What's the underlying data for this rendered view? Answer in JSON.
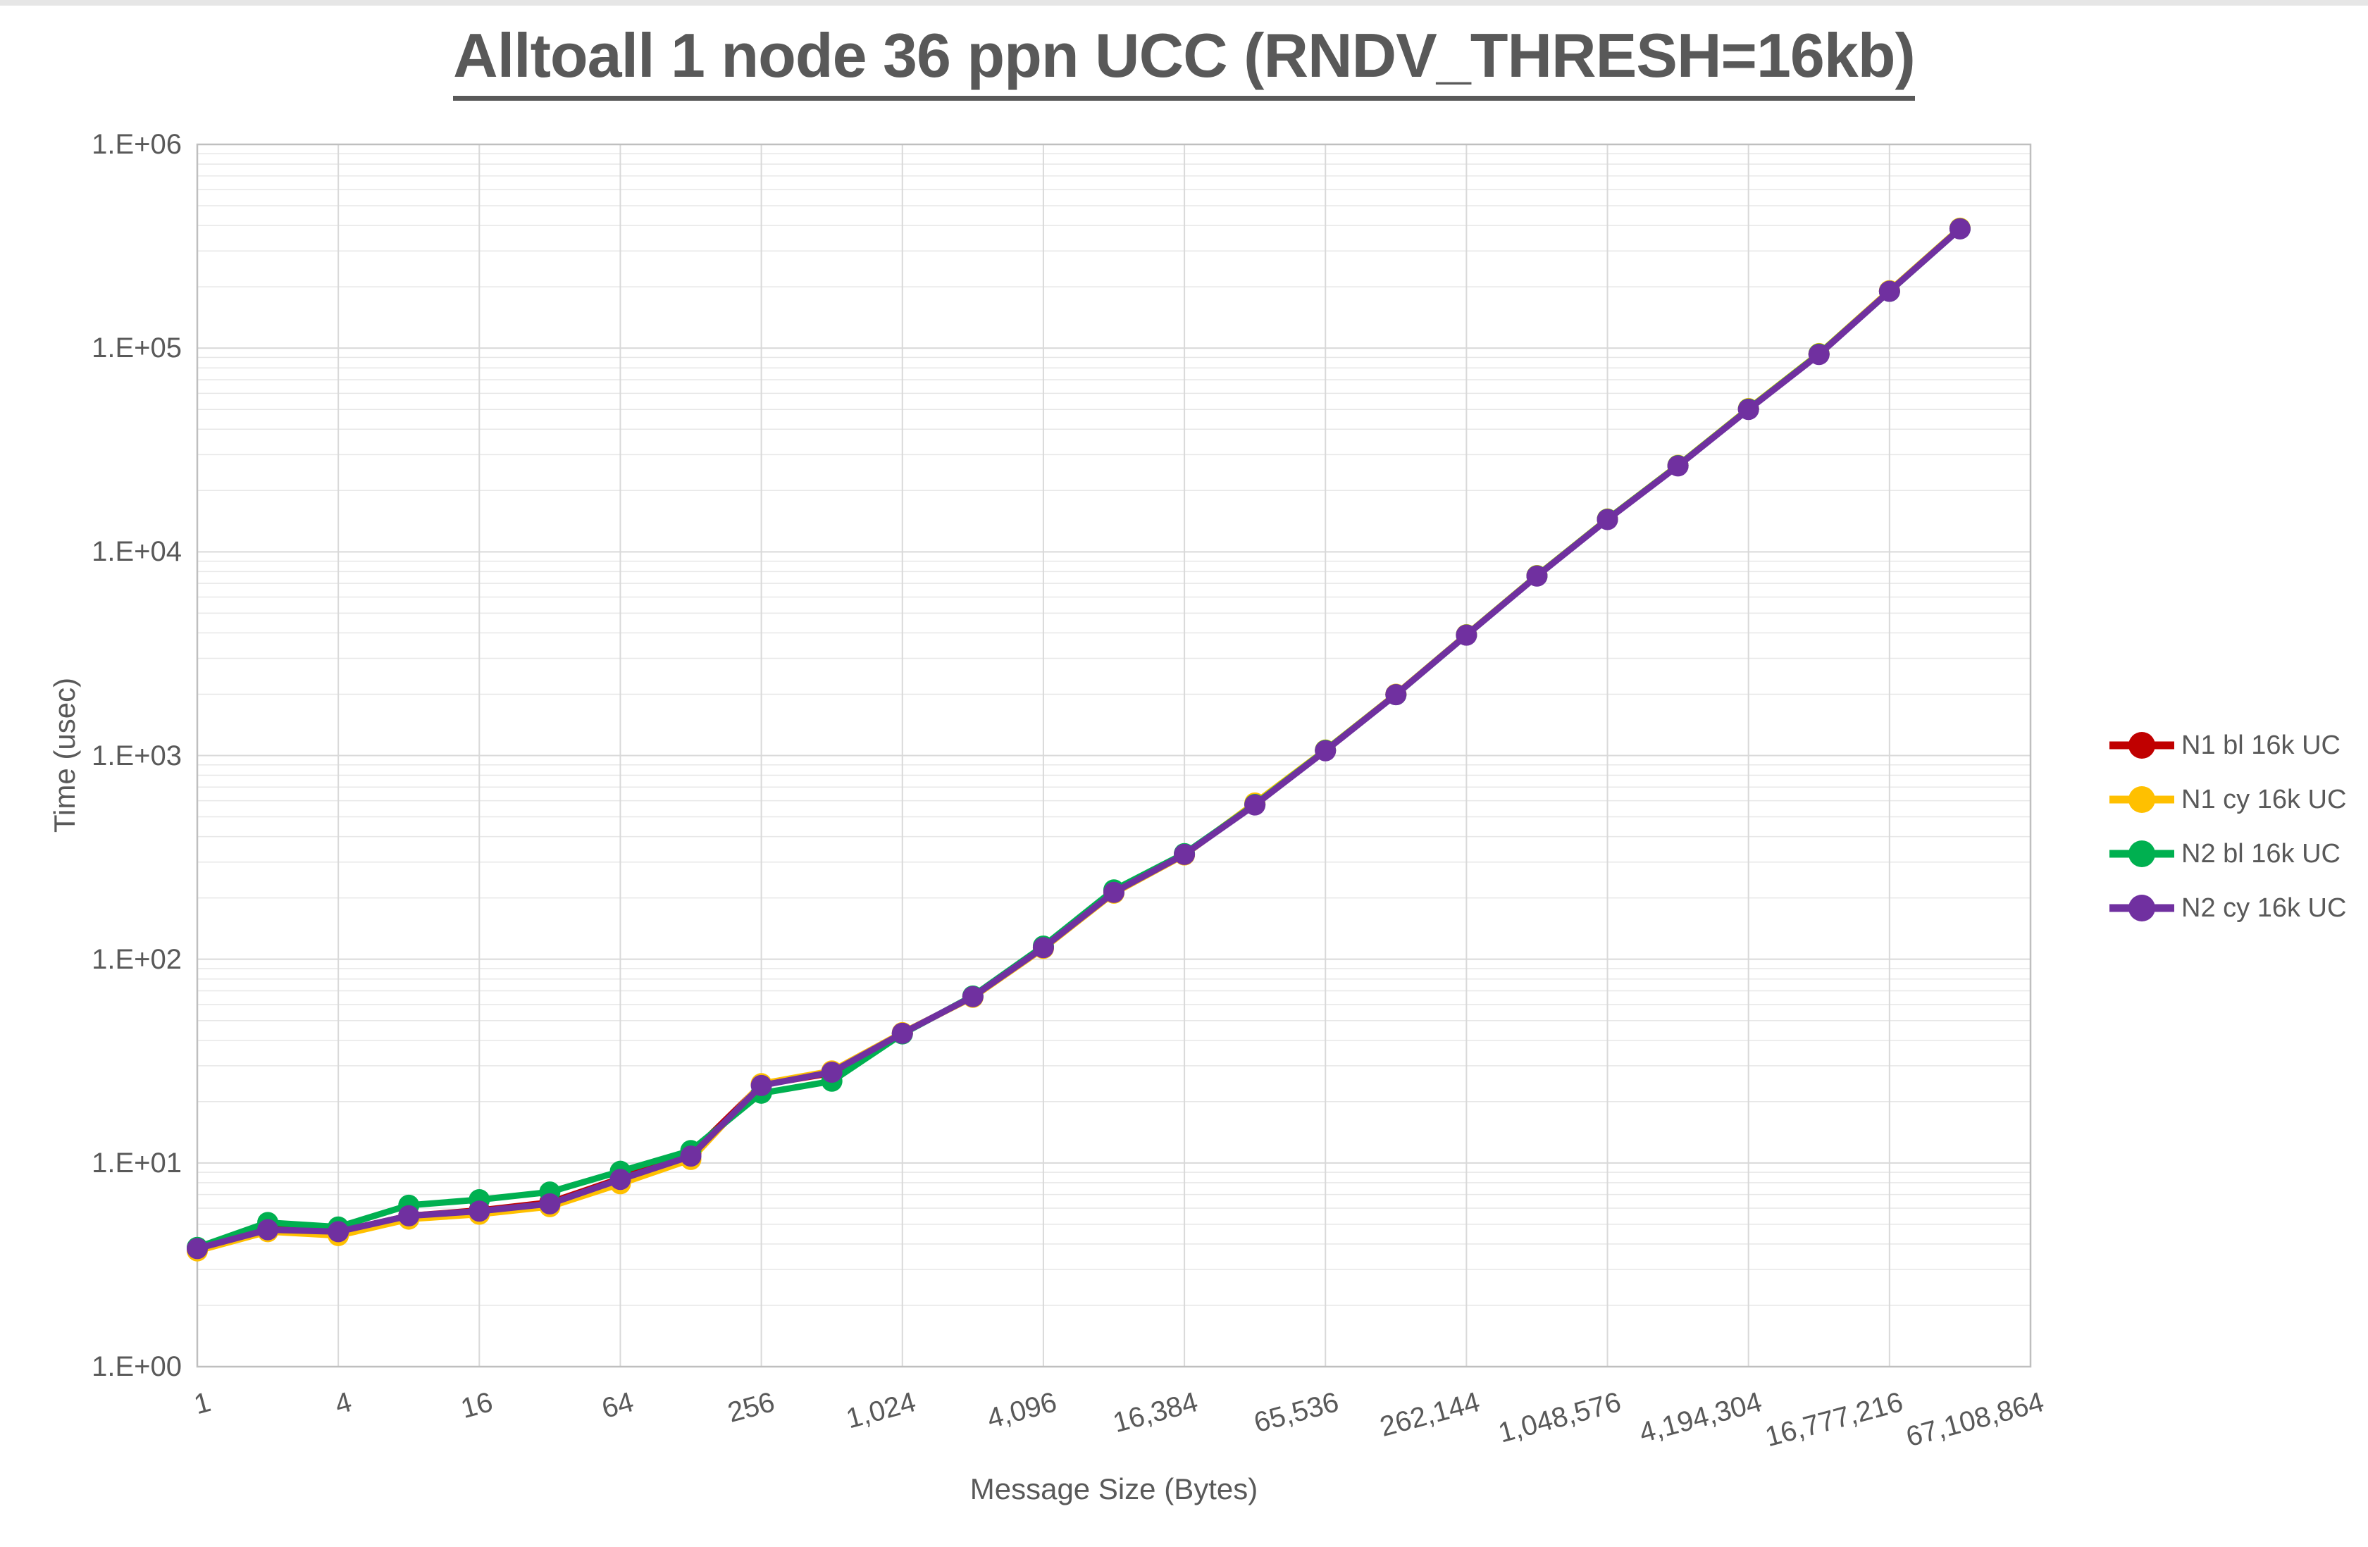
{
  "title": "Alltoall 1 node 36 ppn UCC (RNDV_THRESH=16kb)",
  "colors": {
    "title_text": "#595959",
    "axis_text": "#595959",
    "grid_major": "#d9d9d9",
    "grid_minor": "#e7e7e7",
    "plot_frame": "#bfbfbf"
  },
  "chart_data": {
    "type": "line",
    "title": "Alltoall 1 node 36 ppn UCC (RNDV_THRESH=16kb)",
    "xlabel": "Message Size (Bytes)",
    "ylabel": "Time (usec)",
    "x_scale": "log2-category",
    "y_scale": "log10",
    "ylim": [
      1,
      1000000
    ],
    "grid": true,
    "legend_position": "right",
    "y_tick_labels": [
      "1.E+00",
      "1.E+01",
      "1.E+02",
      "1.E+03",
      "1.E+04",
      "1.E+05",
      "1.E+06"
    ],
    "x_tick_labels": [
      "1",
      "4",
      "16",
      "64",
      "256",
      "1,024",
      "4,096",
      "16,384",
      "65,536",
      "262,144",
      "1,048,576",
      "4,194,304",
      "16,777,216",
      "67,108,864"
    ],
    "x": [
      1,
      2,
      4,
      8,
      16,
      32,
      64,
      128,
      256,
      512,
      1024,
      2048,
      4096,
      8192,
      16384,
      32768,
      65536,
      131072,
      262144,
      524288,
      1048576,
      2097152,
      4194304,
      8388608,
      16777216,
      33554432
    ],
    "series": [
      {
        "name": "N1 bl 16k UC",
        "color": "#c00000",
        "values": [
          3.8,
          4.75,
          4.6,
          5.5,
          5.85,
          6.4,
          8.4,
          11.1,
          24.2,
          27.6,
          43.2,
          65.5,
          114,
          213,
          326,
          578,
          1058,
          1995,
          3910,
          7630,
          14450,
          26500,
          50300,
          93500,
          190500,
          386000
        ]
      },
      {
        "name": "N1 cy 16k UC",
        "color": "#ffc000",
        "values": [
          3.7,
          4.6,
          4.4,
          5.3,
          5.6,
          6.1,
          7.9,
          10.4,
          24.5,
          28.3,
          43.6,
          65.0,
          113,
          211,
          325,
          585,
          1065,
          2000,
          3920,
          7650,
          14500,
          26600,
          50500,
          94000,
          191500,
          388000
        ]
      },
      {
        "name": "N2 bl 16k UC",
        "color": "#00b050",
        "values": [
          3.85,
          5.1,
          4.85,
          6.2,
          6.6,
          7.2,
          9.1,
          11.5,
          22.0,
          25.2,
          43.0,
          66.0,
          116,
          219,
          330,
          575,
          1060,
          1990,
          3905,
          7620,
          14450,
          26500,
          50200,
          93500,
          190000,
          385500
        ]
      },
      {
        "name": "N2 cy 16k UC",
        "color": "#7030a0",
        "values": [
          3.8,
          4.7,
          4.6,
          5.5,
          5.8,
          6.3,
          8.3,
          10.8,
          24.0,
          27.9,
          43.3,
          65.5,
          114,
          213,
          327,
          572,
          1055,
          1990,
          3900,
          7600,
          14400,
          26400,
          50000,
          93000,
          190000,
          385000
        ]
      }
    ]
  }
}
